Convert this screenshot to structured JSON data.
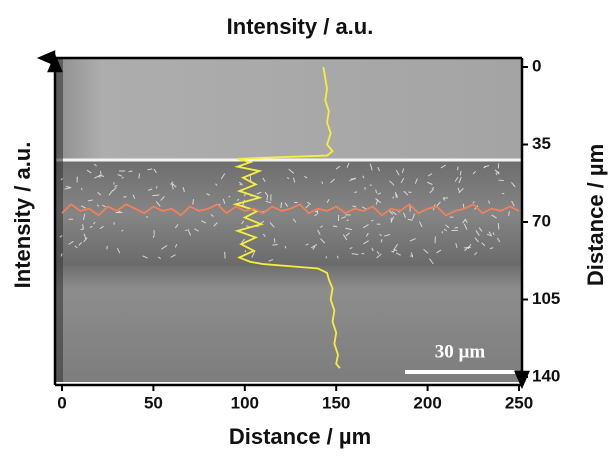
{
  "chart_data": {
    "type": "line",
    "top_label": "Intensity / a.u.",
    "left_label": "Intensity / a.u.",
    "xlabel": "Distance / µm",
    "ylabel": "Distance / µm",
    "scale_bar": "30 µm",
    "xlim": [
      0,
      250
    ],
    "xticks": [
      0,
      50,
      100,
      150,
      200,
      250
    ],
    "ylim": [
      0,
      140
    ],
    "yticks": [
      0,
      35,
      70,
      105,
      140
    ],
    "y_reversed": true,
    "y_axis_side": "right",
    "series": [
      {
        "color": "#f5ef3c",
        "x": [
          143,
          144,
          145,
          144,
          146,
          145,
          147,
          145,
          148,
          145,
          110,
          96,
          103,
          96,
          108,
          99,
          106,
          97,
          108,
          95,
          107,
          100,
          109,
          96,
          106,
          98,
          105,
          97,
          103,
          110,
          125,
          140,
          145,
          146,
          148,
          147,
          149,
          148,
          150,
          149,
          151,
          150,
          152
        ],
        "values": [
          0,
          5,
          10,
          15,
          20,
          25,
          30,
          35,
          38,
          40,
          41,
          41.5,
          43,
          45,
          47,
          50,
          53,
          56,
          59,
          62,
          65,
          68,
          71,
          74,
          77,
          80,
          83,
          86,
          88,
          89,
          90,
          91,
          93,
          96,
          100,
          105,
          110,
          115,
          120,
          125,
          130,
          134,
          136
        ]
      },
      {
        "color": "#f0805a",
        "x": [
          0,
          5,
          10,
          15,
          20,
          25,
          30,
          35,
          40,
          45,
          50,
          55,
          60,
          65,
          70,
          75,
          80,
          85,
          90,
          95,
          100,
          105,
          110,
          115,
          120,
          125,
          130,
          135,
          140,
          145,
          150,
          155,
          160,
          165,
          170,
          175,
          180,
          185,
          190,
          195,
          200,
          205,
          210,
          215,
          220,
          225,
          230,
          235,
          240,
          245,
          250
        ],
        "values": [
          66,
          62,
          65,
          64,
          67,
          63,
          65,
          62,
          64,
          66,
          63,
          65,
          64,
          67,
          63,
          65,
          64,
          62,
          66,
          63,
          65,
          64,
          66,
          63,
          65,
          64,
          62,
          66,
          64,
          65,
          63,
          66,
          64,
          65,
          63,
          67,
          64,
          65,
          62,
          66,
          64,
          63,
          67,
          65,
          64,
          62,
          66,
          64,
          65,
          63,
          65
        ]
      }
    ]
  }
}
